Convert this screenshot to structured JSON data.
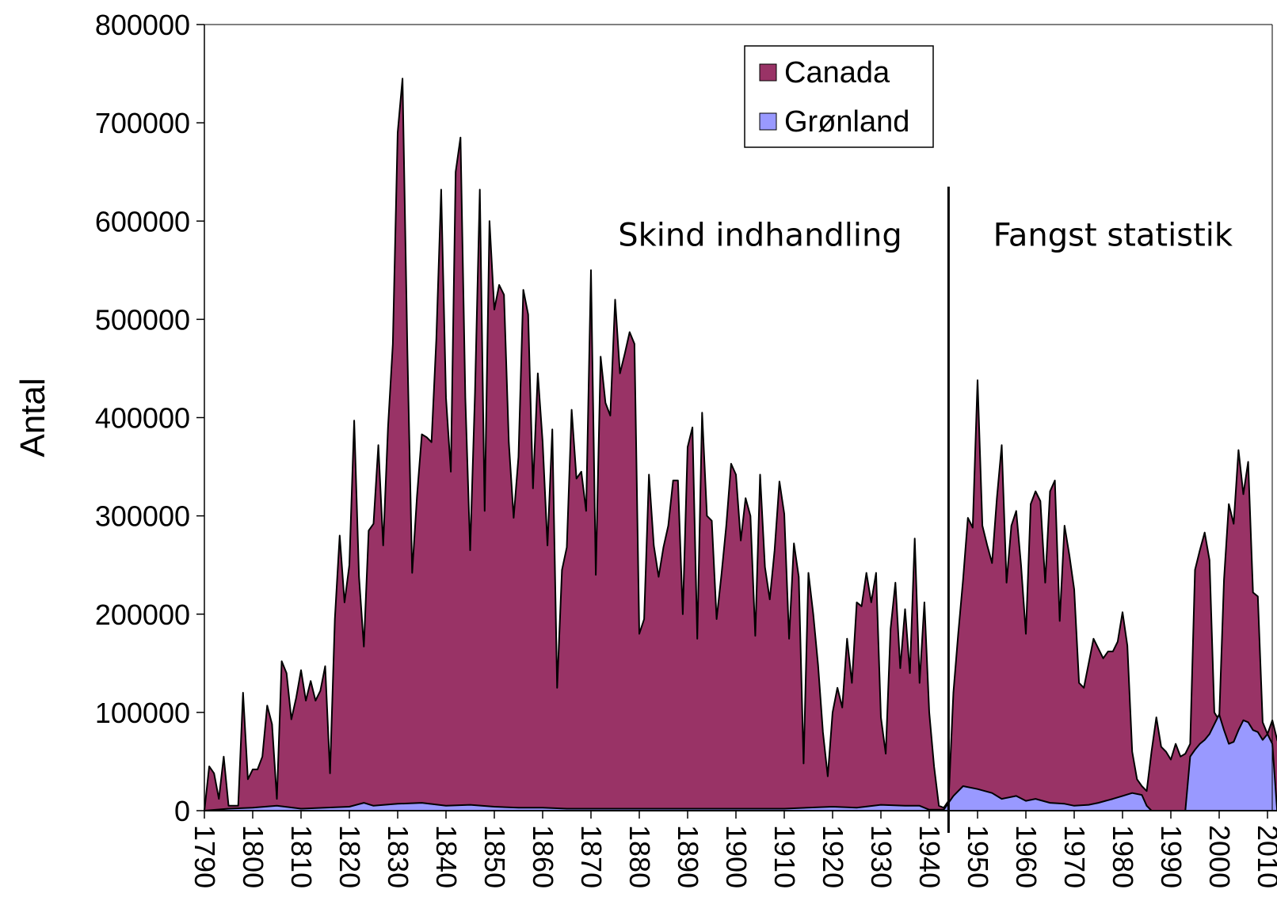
{
  "chart_data": {
    "type": "area",
    "title": "",
    "xlabel": "",
    "ylabel": "Antal",
    "xlim": [
      1790,
      2012
    ],
    "ylim": [
      0,
      800000
    ],
    "y_ticks": [
      0,
      100000,
      200000,
      300000,
      400000,
      500000,
      600000,
      700000,
      800000
    ],
    "x_ticks": [
      1790,
      1800,
      1810,
      1820,
      1830,
      1840,
      1850,
      1860,
      1870,
      1880,
      1890,
      1900,
      1910,
      1920,
      1930,
      1940,
      1950,
      1960,
      1970,
      1980,
      1990,
      2000,
      2010
    ],
    "legend": {
      "position": "top-center",
      "entries": [
        "Canada",
        "Grønland"
      ]
    },
    "grid": false,
    "annotations": [
      {
        "text": "Skind indhandling",
        "x": 1905,
        "y": 575000
      },
      {
        "text": "Fangst statistik",
        "x": 1978,
        "y": 575000
      }
    ],
    "divider_x": 1944,
    "series": [
      {
        "name": "Canada",
        "color": "#993366",
        "points": [
          [
            1790,
            0
          ],
          [
            1791,
            45000
          ],
          [
            1792,
            38000
          ],
          [
            1793,
            12000
          ],
          [
            1794,
            55000
          ],
          [
            1795,
            5000
          ],
          [
            1796,
            5000
          ],
          [
            1797,
            5000
          ],
          [
            1798,
            120000
          ],
          [
            1799,
            32000
          ],
          [
            1800,
            42000
          ],
          [
            1801,
            42000
          ],
          [
            1802,
            55000
          ],
          [
            1803,
            107000
          ],
          [
            1804,
            88000
          ],
          [
            1805,
            12000
          ],
          [
            1806,
            152000
          ],
          [
            1807,
            140000
          ],
          [
            1808,
            93000
          ],
          [
            1809,
            115000
          ],
          [
            1810,
            143000
          ],
          [
            1811,
            112000
          ],
          [
            1812,
            132000
          ],
          [
            1813,
            112000
          ],
          [
            1814,
            122000
          ],
          [
            1815,
            147000
          ],
          [
            1816,
            38000
          ],
          [
            1817,
            195000
          ],
          [
            1818,
            280000
          ],
          [
            1819,
            212000
          ],
          [
            1820,
            250000
          ],
          [
            1821,
            397000
          ],
          [
            1822,
            238000
          ],
          [
            1823,
            167000
          ],
          [
            1824,
            285000
          ],
          [
            1825,
            292000
          ],
          [
            1826,
            372000
          ],
          [
            1827,
            270000
          ],
          [
            1828,
            390000
          ],
          [
            1829,
            475000
          ],
          [
            1830,
            690000
          ],
          [
            1831,
            745000
          ],
          [
            1832,
            470000
          ],
          [
            1833,
            242000
          ],
          [
            1834,
            320000
          ],
          [
            1835,
            383000
          ],
          [
            1836,
            380000
          ],
          [
            1837,
            375000
          ],
          [
            1838,
            480000
          ],
          [
            1839,
            632000
          ],
          [
            1840,
            420000
          ],
          [
            1841,
            345000
          ],
          [
            1842,
            650000
          ],
          [
            1843,
            685000
          ],
          [
            1844,
            420000
          ],
          [
            1845,
            265000
          ],
          [
            1846,
            425000
          ],
          [
            1847,
            632000
          ],
          [
            1848,
            305000
          ],
          [
            1849,
            600000
          ],
          [
            1850,
            510000
          ],
          [
            1851,
            535000
          ],
          [
            1852,
            525000
          ],
          [
            1853,
            375000
          ],
          [
            1854,
            298000
          ],
          [
            1855,
            360000
          ],
          [
            1856,
            530000
          ],
          [
            1857,
            505000
          ],
          [
            1858,
            328000
          ],
          [
            1859,
            445000
          ],
          [
            1860,
            375000
          ],
          [
            1861,
            270000
          ],
          [
            1862,
            388000
          ],
          [
            1863,
            125000
          ],
          [
            1864,
            245000
          ],
          [
            1865,
            268000
          ],
          [
            1866,
            408000
          ],
          [
            1867,
            338000
          ],
          [
            1868,
            345000
          ],
          [
            1869,
            305000
          ],
          [
            1870,
            550000
          ],
          [
            1871,
            240000
          ],
          [
            1872,
            462000
          ],
          [
            1873,
            415000
          ],
          [
            1874,
            402000
          ],
          [
            1875,
            520000
          ],
          [
            1876,
            445000
          ],
          [
            1877,
            465000
          ],
          [
            1878,
            487000
          ],
          [
            1879,
            475000
          ],
          [
            1880,
            180000
          ],
          [
            1881,
            195000
          ],
          [
            1882,
            342000
          ],
          [
            1883,
            270000
          ],
          [
            1884,
            238000
          ],
          [
            1885,
            268000
          ],
          [
            1886,
            290000
          ],
          [
            1887,
            336000
          ],
          [
            1888,
            336000
          ],
          [
            1889,
            200000
          ],
          [
            1890,
            370000
          ],
          [
            1891,
            390000
          ],
          [
            1892,
            175000
          ],
          [
            1893,
            405000
          ],
          [
            1894,
            300000
          ],
          [
            1895,
            295000
          ],
          [
            1896,
            195000
          ],
          [
            1897,
            240000
          ],
          [
            1898,
            290000
          ],
          [
            1899,
            353000
          ],
          [
            1900,
            342000
          ],
          [
            1901,
            275000
          ],
          [
            1902,
            318000
          ],
          [
            1903,
            300000
          ],
          [
            1904,
            178000
          ],
          [
            1905,
            342000
          ],
          [
            1906,
            248000
          ],
          [
            1907,
            215000
          ],
          [
            1908,
            265000
          ],
          [
            1909,
            335000
          ],
          [
            1910,
            302000
          ],
          [
            1911,
            175000
          ],
          [
            1912,
            272000
          ],
          [
            1913,
            238000
          ],
          [
            1914,
            48000
          ],
          [
            1915,
            242000
          ],
          [
            1916,
            200000
          ],
          [
            1917,
            148000
          ],
          [
            1918,
            80000
          ],
          [
            1919,
            35000
          ],
          [
            1920,
            100000
          ],
          [
            1921,
            125000
          ],
          [
            1922,
            105000
          ],
          [
            1923,
            175000
          ],
          [
            1924,
            130000
          ],
          [
            1925,
            212000
          ],
          [
            1926,
            208000
          ],
          [
            1927,
            242000
          ],
          [
            1928,
            212000
          ],
          [
            1929,
            242000
          ],
          [
            1930,
            95000
          ],
          [
            1931,
            58000
          ],
          [
            1932,
            185000
          ],
          [
            1933,
            232000
          ],
          [
            1934,
            145000
          ],
          [
            1935,
            205000
          ],
          [
            1936,
            140000
          ],
          [
            1937,
            277000
          ],
          [
            1938,
            130000
          ],
          [
            1939,
            212000
          ],
          [
            1940,
            100000
          ],
          [
            1941,
            45000
          ],
          [
            1942,
            5000
          ],
          [
            1943,
            3000
          ],
          [
            1944,
            10000
          ],
          [
            1945,
            120000
          ],
          [
            1946,
            180000
          ],
          [
            1947,
            235000
          ],
          [
            1948,
            298000
          ],
          [
            1949,
            288000
          ],
          [
            1950,
            438000
          ],
          [
            1951,
            290000
          ],
          [
            1952,
            270000
          ],
          [
            1953,
            252000
          ],
          [
            1954,
            318000
          ],
          [
            1955,
            372000
          ],
          [
            1956,
            232000
          ],
          [
            1957,
            290000
          ],
          [
            1958,
            305000
          ],
          [
            1959,
            250000
          ],
          [
            1960,
            180000
          ],
          [
            1961,
            312000
          ],
          [
            1962,
            325000
          ],
          [
            1963,
            315000
          ],
          [
            1964,
            232000
          ],
          [
            1965,
            325000
          ],
          [
            1966,
            336000
          ],
          [
            1967,
            193000
          ],
          [
            1968,
            290000
          ],
          [
            1969,
            260000
          ],
          [
            1970,
            225000
          ],
          [
            1971,
            130000
          ],
          [
            1972,
            125000
          ],
          [
            1973,
            150000
          ],
          [
            1974,
            175000
          ],
          [
            1975,
            165000
          ],
          [
            1976,
            155000
          ],
          [
            1977,
            162000
          ],
          [
            1978,
            162000
          ],
          [
            1979,
            172000
          ],
          [
            1980,
            202000
          ],
          [
            1981,
            168000
          ],
          [
            1982,
            60000
          ],
          [
            1983,
            32000
          ],
          [
            1984,
            25000
          ],
          [
            1985,
            20000
          ],
          [
            1986,
            60000
          ],
          [
            1987,
            95000
          ],
          [
            1988,
            65000
          ],
          [
            1989,
            60000
          ],
          [
            1990,
            52000
          ],
          [
            1991,
            68000
          ],
          [
            1992,
            55000
          ],
          [
            1993,
            58000
          ],
          [
            1994,
            68000
          ],
          [
            1995,
            245000
          ],
          [
            1996,
            265000
          ],
          [
            1997,
            283000
          ],
          [
            1998,
            255000
          ],
          [
            1999,
            100000
          ],
          [
            2000,
            92000
          ],
          [
            2001,
            235000
          ],
          [
            2002,
            312000
          ],
          [
            2003,
            292000
          ],
          [
            2004,
            367000
          ],
          [
            2005,
            322000
          ],
          [
            2006,
            355000
          ],
          [
            2007,
            222000
          ],
          [
            2008,
            218000
          ],
          [
            2009,
            90000
          ],
          [
            2010,
            78000
          ],
          [
            2011,
            92000
          ],
          [
            2012,
            72000
          ],
          [
            2013,
            60000
          ],
          [
            2014,
            92000
          ]
        ]
      },
      {
        "name": "Grønland",
        "color": "#9999ff",
        "points": [
          [
            1790,
            0
          ],
          [
            1795,
            2000
          ],
          [
            1800,
            3000
          ],
          [
            1805,
            5000
          ],
          [
            1810,
            2000
          ],
          [
            1815,
            3000
          ],
          [
            1820,
            4000
          ],
          [
            1823,
            8000
          ],
          [
            1825,
            5000
          ],
          [
            1830,
            7000
          ],
          [
            1835,
            8000
          ],
          [
            1840,
            5000
          ],
          [
            1845,
            6000
          ],
          [
            1850,
            4000
          ],
          [
            1855,
            3000
          ],
          [
            1860,
            3000
          ],
          [
            1865,
            2000
          ],
          [
            1870,
            2000
          ],
          [
            1880,
            2000
          ],
          [
            1890,
            2000
          ],
          [
            1900,
            2000
          ],
          [
            1910,
            2000
          ],
          [
            1920,
            4000
          ],
          [
            1925,
            3000
          ],
          [
            1930,
            6000
          ],
          [
            1935,
            5000
          ],
          [
            1938,
            5000
          ],
          [
            1940,
            1000
          ],
          [
            1943,
            1000
          ],
          [
            1945,
            15000
          ],
          [
            1947,
            25000
          ],
          [
            1950,
            22000
          ],
          [
            1953,
            18000
          ],
          [
            1955,
            12000
          ],
          [
            1958,
            15000
          ],
          [
            1960,
            10000
          ],
          [
            1962,
            12000
          ],
          [
            1965,
            8000
          ],
          [
            1968,
            7000
          ],
          [
            1970,
            5000
          ],
          [
            1973,
            6000
          ],
          [
            1975,
            8000
          ],
          [
            1978,
            12000
          ],
          [
            1980,
            15000
          ],
          [
            1982,
            18000
          ],
          [
            1984,
            16000
          ],
          [
            1985,
            5000
          ],
          [
            1986,
            0
          ],
          [
            1990,
            0
          ],
          [
            1993,
            0
          ],
          [
            1994,
            55000
          ],
          [
            1995,
            62000
          ],
          [
            1996,
            68000
          ],
          [
            1997,
            72000
          ],
          [
            1998,
            78000
          ],
          [
            1999,
            88000
          ],
          [
            2000,
            98000
          ],
          [
            2001,
            82000
          ],
          [
            2002,
            68000
          ],
          [
            2003,
            70000
          ],
          [
            2004,
            82000
          ],
          [
            2005,
            92000
          ],
          [
            2006,
            90000
          ],
          [
            2007,
            82000
          ],
          [
            2008,
            80000
          ],
          [
            2009,
            72000
          ],
          [
            2010,
            78000
          ],
          [
            2011,
            68000
          ],
          [
            2012,
            0
          ]
        ]
      }
    ]
  }
}
